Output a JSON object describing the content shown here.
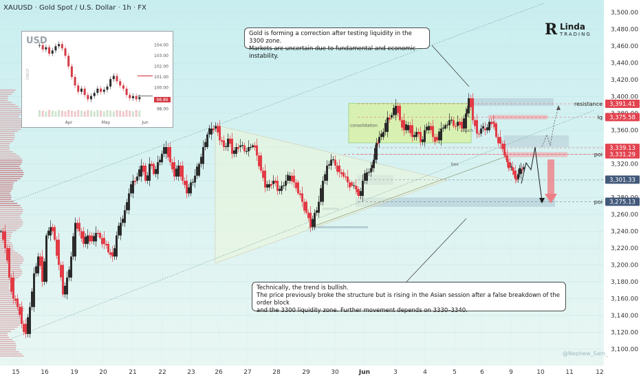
{
  "header": {
    "symbol": "XAUUSD",
    "description": "Gold Spot / U.S. Dollar",
    "interval": "1h",
    "exchange": "FX",
    "sep": "·"
  },
  "callouts": {
    "top_line1": "Gold is forming a correction after testing liquidity in the 3300 zone.",
    "top_line2": "Markets are uncertain due to fundamental and economic instability.",
    "bottom_line1": "Technically, the trend is bullish.",
    "bottom_line2": "The price previously broke the structure but is rising in the Asian session after a false breakdown of the order block",
    "bottom_line3": "and the 3300 liquidity zone. Further movement depends on 3330–3340."
  },
  "logo": {
    "mark": "R",
    "word1": "Linda",
    "word2": "TRADING"
  },
  "watermark": "@Nephew_Sam_",
  "chart_data": [
    {
      "type": "candlestick",
      "title": "XAUUSD · Gold Spot / U.S. Dollar · 1h · FX",
      "ylim": [
        3090,
        3510
      ],
      "yticks": [
        3100,
        3120,
        3140,
        3160,
        3180,
        3200,
        3220,
        3240,
        3260,
        3280,
        3300,
        3320,
        3340,
        3360,
        3380,
        3400,
        3420,
        3440,
        3460,
        3480,
        3500
      ],
      "xticks": [
        "15",
        "16",
        "19",
        "20",
        "21",
        "22",
        "23",
        "26",
        "27",
        "28",
        "29",
        "30",
        "Jun",
        "3",
        "4",
        "5",
        "6",
        "9",
        "10",
        "11",
        "12"
      ],
      "path": [
        [
          0,
          3240
        ],
        [
          6,
          3220
        ],
        [
          12,
          3185
        ],
        [
          18,
          3160
        ],
        [
          24,
          3150
        ],
        [
          30,
          3130
        ],
        [
          36,
          3118
        ],
        [
          42,
          3150
        ],
        [
          48,
          3190
        ],
        [
          54,
          3210
        ],
        [
          60,
          3180
        ],
        [
          66,
          3235
        ],
        [
          72,
          3245
        ],
        [
          78,
          3230
        ],
        [
          84,
          3200
        ],
        [
          90,
          3165
        ],
        [
          96,
          3185
        ],
        [
          102,
          3210
        ],
        [
          108,
          3250
        ],
        [
          114,
          3240
        ],
        [
          120,
          3225
        ],
        [
          126,
          3235
        ],
        [
          132,
          3228
        ],
        [
          138,
          3238
        ],
        [
          144,
          3232
        ],
        [
          150,
          3225
        ],
        [
          156,
          3215
        ],
        [
          162,
          3210
        ],
        [
          168,
          3235
        ],
        [
          174,
          3250
        ],
        [
          180,
          3265
        ],
        [
          186,
          3285
        ],
        [
          192,
          3300
        ],
        [
          198,
          3305
        ],
        [
          204,
          3318
        ],
        [
          210,
          3300
        ],
        [
          216,
          3320
        ],
        [
          222,
          3308
        ],
        [
          228,
          3322
        ],
        [
          234,
          3332
        ],
        [
          240,
          3340
        ],
        [
          246,
          3322
        ],
        [
          252,
          3305
        ],
        [
          258,
          3318
        ],
        [
          264,
          3300
        ],
        [
          270,
          3285
        ],
        [
          276,
          3298
        ],
        [
          282,
          3306
        ],
        [
          288,
          3320
        ],
        [
          294,
          3340
        ],
        [
          300,
          3355
        ],
        [
          306,
          3362
        ],
        [
          312,
          3365
        ],
        [
          318,
          3348
        ],
        [
          324,
          3340
        ],
        [
          330,
          3350
        ],
        [
          336,
          3332
        ],
        [
          342,
          3340
        ],
        [
          348,
          3342
        ],
        [
          354,
          3335
        ],
        [
          360,
          3340
        ],
        [
          366,
          3342
        ],
        [
          372,
          3330
        ],
        [
          378,
          3312
        ],
        [
          384,
          3292
        ],
        [
          390,
          3296
        ],
        [
          396,
          3300
        ],
        [
          402,
          3288
        ],
        [
          408,
          3294
        ],
        [
          414,
          3300
        ],
        [
          420,
          3306
        ],
        [
          426,
          3298
        ],
        [
          432,
          3285
        ],
        [
          438,
          3275
        ],
        [
          444,
          3262
        ],
        [
          450,
          3245
        ],
        [
          456,
          3262
        ],
        [
          462,
          3275
        ],
        [
          468,
          3300
        ],
        [
          474,
          3318
        ],
        [
          480,
          3325
        ],
        [
          486,
          3318
        ],
        [
          492,
          3310
        ],
        [
          498,
          3305
        ],
        [
          504,
          3298
        ],
        [
          510,
          3294
        ],
        [
          516,
          3290
        ],
        [
          520,
          3282
        ],
        [
          526,
          3300
        ],
        [
          532,
          3310
        ],
        [
          538,
          3315
        ],
        [
          542,
          3325
        ],
        [
          546,
          3345
        ],
        [
          550,
          3352
        ],
        [
          556,
          3358
        ],
        [
          562,
          3375
        ],
        [
          568,
          3378
        ],
        [
          574,
          3389
        ],
        [
          580,
          3372
        ],
        [
          586,
          3360
        ],
        [
          592,
          3366
        ],
        [
          598,
          3352
        ],
        [
          604,
          3358
        ],
        [
          610,
          3346
        ],
        [
          616,
          3360
        ],
        [
          622,
          3365
        ],
        [
          628,
          3352
        ],
        [
          634,
          3348
        ],
        [
          640,
          3362
        ],
        [
          646,
          3366
        ],
        [
          652,
          3372
        ],
        [
          658,
          3365
        ],
        [
          664,
          3370
        ],
        [
          670,
          3362
        ],
        [
          676,
          3380
        ],
        [
          680,
          3398
        ],
        [
          686,
          3372
        ],
        [
          692,
          3356
        ],
        [
          698,
          3362
        ],
        [
          704,
          3360
        ],
        [
          710,
          3370
        ],
        [
          716,
          3368
        ],
        [
          720,
          3352
        ],
        [
          726,
          3344
        ],
        [
          732,
          3330
        ],
        [
          736,
          3322
        ],
        [
          740,
          3316
        ],
        [
          744,
          3312
        ],
        [
          748,
          3302
        ],
        [
          752,
          3308
        ],
        [
          756,
          3314
        ],
        [
          760,
          3316
        ]
      ],
      "annotations": {
        "levels": [
          {
            "label": "resistance",
            "price": 3391.41
          },
          {
            "label": "lq",
            "price": 3375.58
          },
          {
            "label": "poi",
            "price": 3331.29
          },
          {
            "label": "poi",
            "price": 3275.13
          }
        ],
        "zones": [
          "consolidation",
          "choch",
          "bos"
        ]
      },
      "price_tags": [
        {
          "value": "3,391.41",
          "color": "#e2434f"
        },
        {
          "value": "3,375.58",
          "color": "#e2434f"
        },
        {
          "value": "3,339.13",
          "color": "#e2434f"
        },
        {
          "value": "3,331.29",
          "color": "#e2434f"
        },
        {
          "value": "3,301.33",
          "color": "#42597a"
        },
        {
          "value": "3,275.13",
          "color": "#42597a"
        }
      ],
      "colors": {
        "up": "#2b2b2b",
        "down": "#e23b46",
        "bg_top": "#cfeff1",
        "bg_bottom": "#e9f6f4"
      }
    },
    {
      "type": "candlestick",
      "title": "USD",
      "ylabel": "DAILY",
      "ylim": [
        97.5,
        104.5
      ],
      "yticks": [
        "104.00",
        "103.00",
        "102.00",
        "101.00",
        "100.00",
        "98.00"
      ],
      "current_value": "98.86",
      "xticks": [
        "Apr",
        "May",
        "Jun"
      ],
      "values": [
        104.0,
        103.6,
        103.8,
        103.2,
        103.5,
        103.9,
        104.1,
        103.7,
        103.0,
        102.0,
        101.0,
        100.2,
        99.6,
        99.9,
        99.3,
        98.9,
        99.2,
        99.5,
        99.9,
        99.6,
        99.8,
        100.1,
        100.8,
        101.1,
        100.6,
        100.2,
        99.9,
        99.3,
        99.0,
        99.2,
        98.9,
        99.1
      ]
    }
  ]
}
